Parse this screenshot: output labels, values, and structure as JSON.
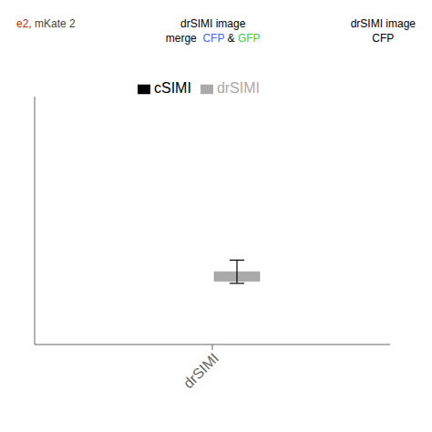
{
  "chart_data": {
    "type": "bar",
    "categories": [
      "drSIMI"
    ],
    "series": [
      {
        "name": "cSIMI",
        "color": "#000000",
        "values": [
          null
        ]
      },
      {
        "name": "drSIMI",
        "color": "#aaaaaa",
        "values": [
          0.018
        ],
        "errors": [
          0.022
        ]
      }
    ],
    "ylim": [
      -0.12,
      0.35
    ],
    "yticks": [],
    "tick_labels": "x",
    "grid": false,
    "legend": "top",
    "annotations": [
      [
        {
          "text": "e2",
          "color": "#cc2200"
        },
        {
          "text": ", mKate 2",
          "color": "#444444"
        }
      ],
      [
        {
          "text": "drSIMI image",
          "color": "#000000"
        }
      ],
      [
        {
          "text": "merge  ",
          "color": "#000000"
        },
        {
          "text": "CFP",
          "color": "#4466ee"
        },
        {
          "text": " & ",
          "color": "#000000"
        },
        {
          "text": "GFP",
          "color": "#44cc44"
        }
      ],
      [
        {
          "text": "drSIMI image",
          "color": "#000000"
        }
      ],
      [
        {
          "text": "CFP",
          "color": "#000000"
        }
      ]
    ]
  }
}
